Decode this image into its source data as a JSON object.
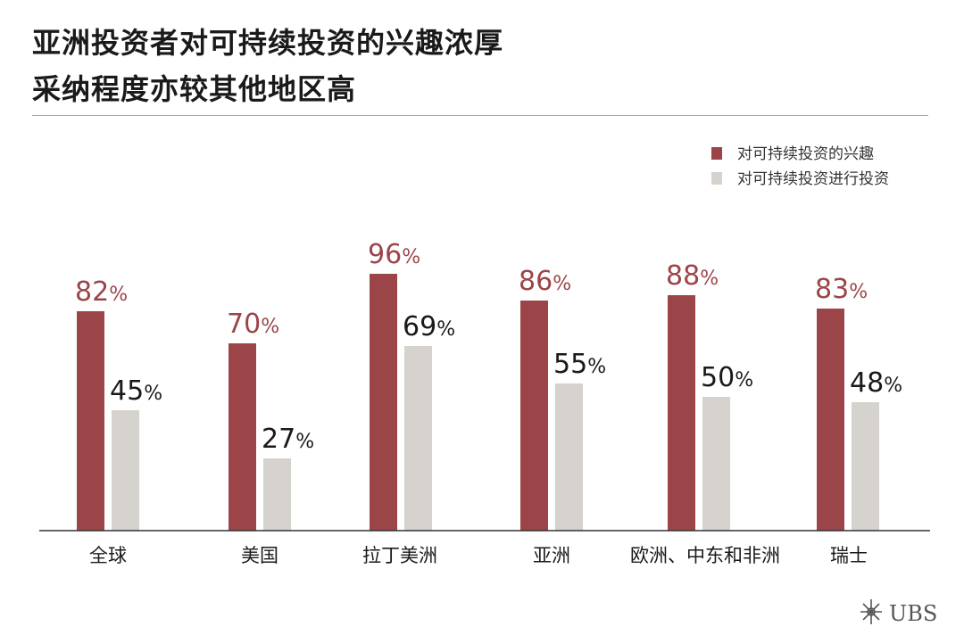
{
  "title": {
    "line1": "亚洲投资者对可持续投资的兴趣浓厚",
    "line2": "采纳程度亦较其他地区高"
  },
  "colors": {
    "interest": "#9b4549",
    "invest": "#d6d2ce",
    "interest_label": "#9b4549",
    "invest_label": "#1a1a1a"
  },
  "chart_data": {
    "type": "bar",
    "categories": [
      "全球",
      "美国",
      "拉丁美洲",
      "亚洲",
      "欧洲、中东和非洲",
      "瑞士"
    ],
    "series": [
      {
        "name": "对可持续投资的兴趣",
        "values": [
          82,
          70,
          96,
          86,
          88,
          83
        ]
      },
      {
        "name": "对可持续投资进行投资",
        "values": [
          45,
          27,
          69,
          55,
          50,
          48
        ]
      }
    ],
    "unit": "%",
    "ylim": [
      0,
      100
    ],
    "grid": false,
    "legend": "top-right"
  },
  "logo": {
    "text": "UBS",
    "icon": "keys-icon"
  }
}
